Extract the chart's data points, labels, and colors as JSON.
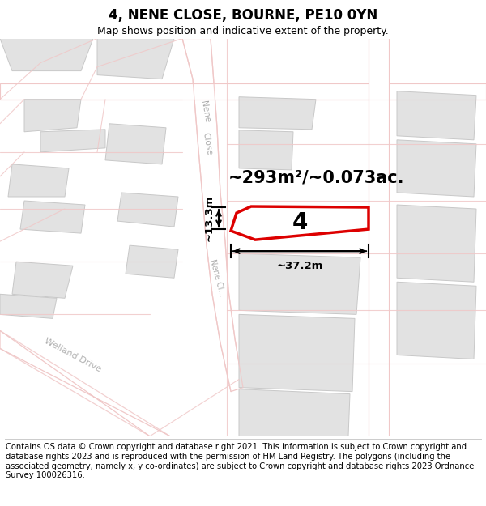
{
  "title": "4, NENE CLOSE, BOURNE, PE10 0YN",
  "subtitle": "Map shows position and indicative extent of the property.",
  "footer": "Contains OS data © Crown copyright and database right 2021. This information is subject to Crown copyright and database rights 2023 and is reproduced with the permission of HM Land Registry. The polygons (including the associated geometry, namely x, y co-ordinates) are subject to Crown copyright and database rights 2023 Ordnance Survey 100026316.",
  "area_label": "~293m²/~0.073ac.",
  "width_label": "~37.2m",
  "height_label": "~13.3m",
  "plot_number": "4",
  "map_bg": "#f7f7f7",
  "road_color": "#f0c8c8",
  "building_color": "#e2e2e2",
  "plot_outline_color": "#dd0000",
  "title_fontsize": 12,
  "subtitle_fontsize": 9,
  "footer_fontsize": 7.2,
  "area_label_fontsize": 15,
  "plot_num_fontsize": 20,
  "dim_fontsize": 9.5
}
